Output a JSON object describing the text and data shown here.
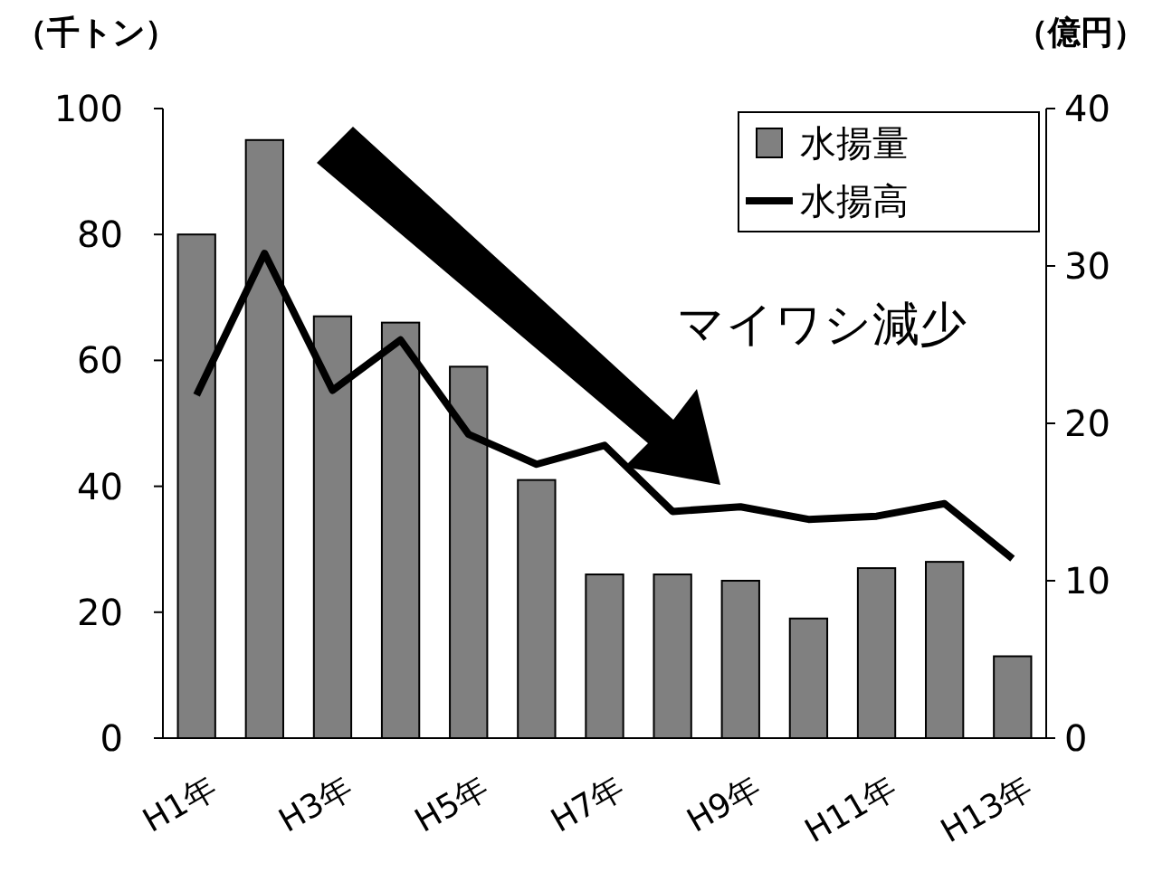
{
  "chart_data": {
    "type": "bar",
    "ylabel": "（千トン）",
    "y2label": "（億円）",
    "categories": [
      "H1年",
      null,
      "H3年",
      null,
      "H5年",
      null,
      "H7年",
      null,
      "H9年",
      null,
      "H11年",
      null,
      "H13年"
    ],
    "series": [
      {
        "name": "水揚量",
        "color": "#808080",
        "values": [
          80,
          95,
          67,
          66,
          59,
          41,
          26,
          26,
          25,
          19,
          27,
          28,
          13
        ]
      },
      {
        "name": "水揚高",
        "type": "line",
        "axis": "y2",
        "color": "#000000",
        "values": [
          21.8,
          30.8,
          22.1,
          25.3,
          19.3,
          17.4,
          18.6,
          14.4,
          14.7,
          13.9,
          14.1,
          14.9,
          11.4
        ]
      }
    ],
    "ylim": [
      0,
      100
    ],
    "yticks": [
      0,
      20,
      40,
      60,
      80,
      100
    ],
    "y2lim": [
      0,
      40
    ],
    "y2ticks": [
      0,
      10,
      20,
      30,
      40
    ],
    "annotations": [
      "マイワシ減少"
    ],
    "legend": "top right",
    "grid": false
  }
}
